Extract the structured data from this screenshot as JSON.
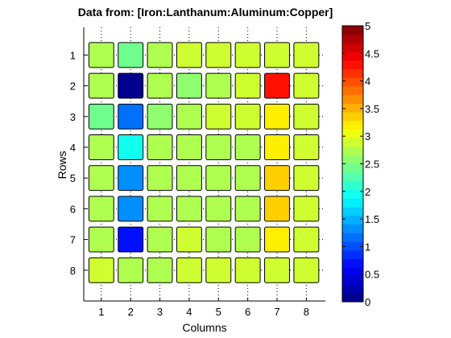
{
  "chart_data": {
    "type": "heatmap",
    "title": "Data from: [Iron:Lanthanum:Aluminum:Copper]",
    "xlabel": "Columns",
    "ylabel": "Rows",
    "x_categories": [
      "1",
      "2",
      "3",
      "4",
      "5",
      "6",
      "7",
      "8"
    ],
    "y_categories": [
      "1",
      "2",
      "3",
      "4",
      "5",
      "6",
      "7",
      "8"
    ],
    "values": [
      [
        2.8,
        2.4,
        2.8,
        2.9,
        2.9,
        2.9,
        2.9,
        2.9
      ],
      [
        2.8,
        0.1,
        2.8,
        2.5,
        2.8,
        2.9,
        4.3,
        2.9
      ],
      [
        2.4,
        1.2,
        2.5,
        2.8,
        2.9,
        2.9,
        3.2,
        2.9
      ],
      [
        2.8,
        1.9,
        2.8,
        2.8,
        2.8,
        2.8,
        3.2,
        2.9
      ],
      [
        2.8,
        1.4,
        2.8,
        2.8,
        2.8,
        2.8,
        3.3,
        2.9
      ],
      [
        2.8,
        1.4,
        2.8,
        2.8,
        2.8,
        2.8,
        3.3,
        2.9
      ],
      [
        2.8,
        0.7,
        2.8,
        2.9,
        2.8,
        2.8,
        3.2,
        2.9
      ],
      [
        2.9,
        2.8,
        2.8,
        2.9,
        2.9,
        2.9,
        2.9,
        2.9
      ]
    ],
    "colorbar": {
      "range": [
        0,
        5
      ],
      "ticks": [
        "0",
        "0.5",
        "1",
        "1.5",
        "2",
        "2.5",
        "3",
        "3.5",
        "4",
        "4.5",
        "5"
      ],
      "colormap": "jet"
    },
    "grid": "dotted"
  }
}
